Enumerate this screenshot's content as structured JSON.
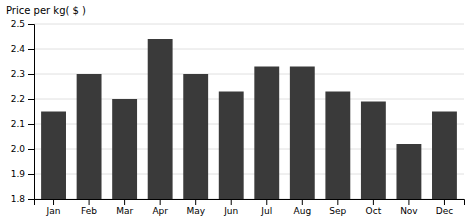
{
  "chart_data": {
    "type": "bar",
    "ylabel": "Price per kg( $ )",
    "categories": [
      "Jan",
      "Feb",
      "Mar",
      "Apr",
      "May",
      "Jun",
      "Jul",
      "Aug",
      "Sep",
      "Oct",
      "Nov",
      "Dec"
    ],
    "values": [
      2.15,
      2.3,
      2.2,
      2.44,
      2.3,
      2.23,
      2.33,
      2.33,
      2.23,
      2.19,
      2.02,
      2.15
    ],
    "color": "#3a3a3a",
    "ylim": [
      1.8,
      2.5
    ],
    "yticks": [
      1.8,
      1.9,
      {
        "value": 2.0,
        "label": "2.0"
      },
      2.1,
      2.2,
      2.3,
      2.4,
      2.5
    ],
    "grid": true
  }
}
